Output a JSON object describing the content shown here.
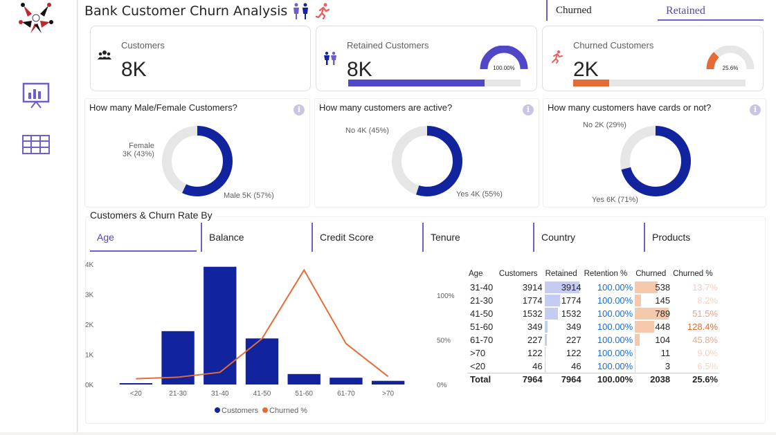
{
  "header": {
    "title": "Bank Customer Churn Analysis",
    "slicer": [
      {
        "label": "Churned"
      },
      {
        "label": "Retained"
      }
    ]
  },
  "sidebar": {
    "items": [
      {
        "name": "presentation-icon"
      },
      {
        "name": "table-icon"
      }
    ]
  },
  "kpis": {
    "customers": {
      "label": "Customers",
      "value": "8K"
    },
    "retained": {
      "label": "Retained Customers",
      "value": "8K",
      "gauge": "100.00%",
      "bar_fraction": 0.79,
      "gauge_fraction": 1.0
    },
    "churned": {
      "label": "Churned Customers",
      "value": "2K",
      "gauge": "25.6%",
      "bar_fraction": 0.21,
      "gauge_fraction": 0.256
    }
  },
  "donuts": [
    {
      "question": "How many Male/Female Customers?",
      "a_label": "Female",
      "a_value": "3K (43%)",
      "b_label": "Male 5K (57%)",
      "b_fraction": 0.57
    },
    {
      "question": "How many customers are active?",
      "a_label": "No 4K (45%)",
      "b_label": "Yes 4K (55%)",
      "b_fraction": 0.55
    },
    {
      "question": "How many customers have cards or not?",
      "a_label": "No 2K (29%)",
      "b_label": "Yes 6K (71%)",
      "b_fraction": 0.71
    }
  ],
  "section": {
    "title": "Customers & Churn Rate By",
    "tabs": [
      "Age",
      "Balance",
      "Credit Score",
      "Tenure",
      "Country",
      "Products"
    ]
  },
  "chart_data": {
    "type": "bar",
    "categories": [
      "<20",
      "21-30",
      "31-40",
      "41-50",
      "51-60",
      "61-70",
      ">70"
    ],
    "series": [
      {
        "name": "Customers",
        "type": "bar",
        "values": [
          46,
          1774,
          3914,
          1532,
          349,
          227,
          122
        ],
        "axis": "left"
      },
      {
        "name": "Churned %",
        "type": "line",
        "values": [
          6.5,
          8.2,
          13.7,
          51.5,
          128.4,
          45.8,
          9.0
        ],
        "axis": "right"
      }
    ],
    "y_ticks": [
      "4K",
      "3K",
      "2K",
      "1K",
      "0K"
    ],
    "y2_ticks": [
      "100%",
      "50%",
      "0%"
    ],
    "ylim": [
      0,
      4000
    ],
    "y2lim": [
      0,
      135
    ],
    "colors": {
      "Customers": "#12239e",
      "Churned %": "#e66c37"
    }
  },
  "table": {
    "headers": [
      "Age",
      "Customers",
      "Retained",
      "Retention %",
      "Churned",
      "Churned %"
    ],
    "rows": [
      [
        "31-40",
        "3914",
        "3914",
        "100.00%",
        "538",
        "13.7%"
      ],
      [
        "21-30",
        "1774",
        "1774",
        "100.00%",
        "145",
        "8.2%"
      ],
      [
        "41-50",
        "1532",
        "1532",
        "100.00%",
        "789",
        "51.5%"
      ],
      [
        "51-60",
        "349",
        "349",
        "100.00%",
        "448",
        "128.4%"
      ],
      [
        "61-70",
        "227",
        "227",
        "100.00%",
        "104",
        "45.8%"
      ],
      [
        ">70",
        "122",
        "122",
        "100.00%",
        "11",
        "9.0%"
      ],
      [
        "<20",
        "46",
        "46",
        "100.00%",
        "3",
        "6.5%"
      ]
    ],
    "total": [
      "Total",
      "7964",
      "7964",
      "100.00%",
      "2038",
      "25.6%"
    ]
  },
  "colors": {
    "accent": "#6c5fc7",
    "navy": "#12239e",
    "orange": "#e66c37",
    "retained_bar": "#c5ccf4",
    "churned_bar": "#f6c9ad"
  }
}
